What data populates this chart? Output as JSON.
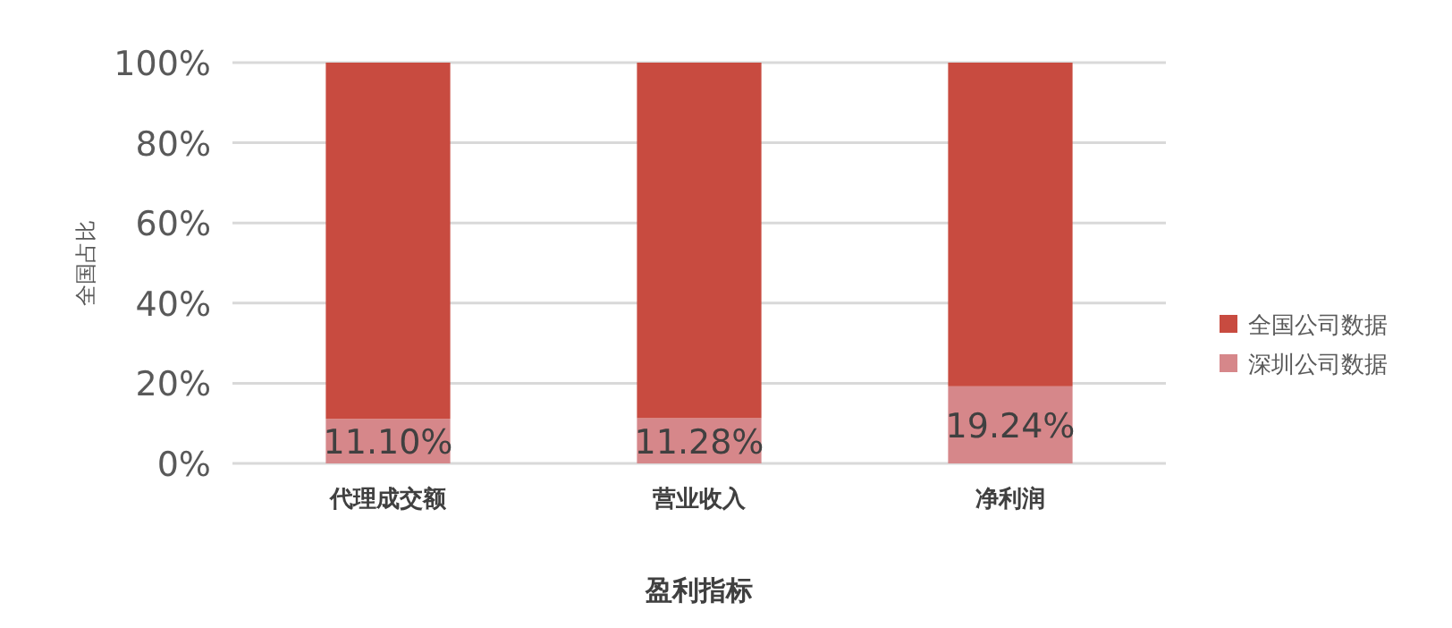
{
  "chart_data": {
    "type": "bar",
    "stacked": true,
    "xlabel": "盈利指标",
    "ylabel": "全国占比",
    "categories": [
      "代理成交额",
      "营业收入",
      "净利润"
    ],
    "series": [
      {
        "name": "深圳公司数据",
        "color": "#d6878a",
        "values": [
          11.1,
          11.28,
          19.24
        ],
        "value_labels": [
          "11.10%",
          "11.28%",
          "19.24%"
        ]
      },
      {
        "name": "全国公司数据",
        "color": "#c84b40",
        "values": [
          88.9,
          88.72,
          80.76
        ]
      }
    ],
    "ylim": [
      0,
      100
    ],
    "yticks": [
      {
        "value": 0,
        "label": "0%"
      },
      {
        "value": 20,
        "label": "20%"
      },
      {
        "value": 40,
        "label": "40%"
      },
      {
        "value": 60,
        "label": "60%"
      },
      {
        "value": 80,
        "label": "80%"
      },
      {
        "value": 100,
        "label": "100%"
      }
    ],
    "grid": "y",
    "legend": "right"
  }
}
